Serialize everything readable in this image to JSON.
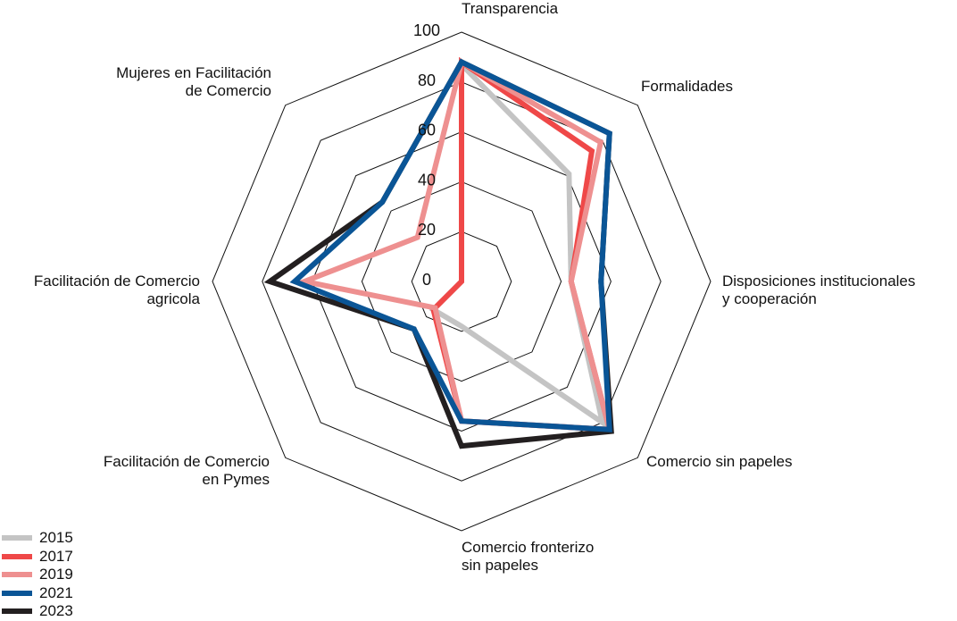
{
  "chart_data": {
    "type": "radar",
    "axes": [
      "Transparencia",
      "Formalidades",
      "Disposiciones institucionales\ny cooperación",
      "Comercio sin papeles",
      "Comercio fronterizo\nsin papeles",
      "Facilitación de Comercio\nen Pymes",
      "Facilitación de Comercio\nagricola",
      "Mujeres en Facilitación\nde Comercio"
    ],
    "ticks": [
      "0",
      "20",
      "40",
      "60",
      "80",
      "100"
    ],
    "range": [
      0,
      100
    ],
    "legend_position": "bottom-left",
    "series": [
      {
        "name": "2015",
        "color": "#c4c4c4",
        "values": [
          87,
          61,
          44,
          80,
          18,
          16,
          0,
          0
        ]
      },
      {
        "name": "2017",
        "color": "#ef4848",
        "values": [
          88,
          74,
          44,
          84,
          56,
          16,
          0,
          0
        ]
      },
      {
        "name": "2019",
        "color": "#ee9090",
        "values": [
          88,
          79,
          44,
          84,
          56,
          15,
          63,
          25
        ]
      },
      {
        "name": "2023",
        "color": "#231f20",
        "values": [
          88,
          84,
          56,
          85,
          66,
          27,
          77,
          45
        ]
      },
      {
        "name": "2021",
        "color": "#0a5596",
        "values": [
          88,
          84,
          56,
          84,
          56,
          27,
          67,
          45
        ]
      }
    ],
    "legend_order": [
      "2015",
      "2017",
      "2019",
      "2021",
      "2023"
    ]
  }
}
